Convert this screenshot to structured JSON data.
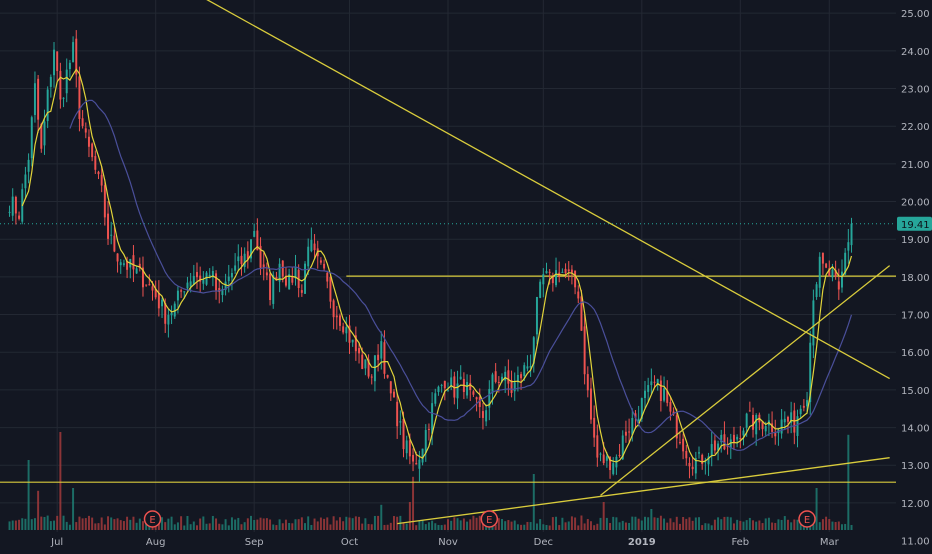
{
  "colors": {
    "background": "#131722",
    "grid": "#232833",
    "up": "#26a69a",
    "down": "#ef5350",
    "up_volume": "#1f7d72",
    "down_volume": "#a2393b",
    "ma_fast": "#e2d43a",
    "ma_slow": "#4a4f9a",
    "trendline": "#d9cc3c",
    "axis_text": "#b2b5be",
    "last_price_bg": "#26a69a",
    "last_price_text": "#0d1118",
    "earnings_marker": "#ef5350"
  },
  "chart_data": {
    "type": "candlestick",
    "price_axis": {
      "ticks": [
        "25.00",
        "24.00",
        "23.00",
        "22.00",
        "21.00",
        "20.00",
        "19.00",
        "18.00",
        "17.00",
        "16.00",
        "15.00",
        "14.00",
        "13.00",
        "12.00",
        "11.00"
      ],
      "ylim": [
        10.75,
        25.35
      ],
      "last_price_label": "19.41",
      "last_price": 19.41
    },
    "time_axis": {
      "months": [
        {
          "label": "Jul",
          "day": 13
        },
        {
          "label": "Aug",
          "day": 44
        },
        {
          "label": "Sep",
          "day": 75
        },
        {
          "label": "Oct",
          "day": 105
        },
        {
          "label": "Nov",
          "day": 136
        },
        {
          "label": "Dec",
          "day": 166
        },
        {
          "label": "2019",
          "day": 197
        },
        {
          "label": "Feb",
          "day": 228
        },
        {
          "label": "Mar",
          "day": 256
        }
      ],
      "day_range": [
        -5,
        277
      ]
    },
    "earnings_markers": [
      {
        "label": "E",
        "day": 43
      },
      {
        "label": "E",
        "day": 149
      },
      {
        "label": "E",
        "day": 249
      }
    ],
    "price_anchors": [
      [
        -2,
        20.0
      ],
      [
        1,
        19.7
      ],
      [
        4,
        21.2
      ],
      [
        6,
        23.0
      ],
      [
        8,
        21.3
      ],
      [
        10,
        22.8
      ],
      [
        12,
        24.1
      ],
      [
        14,
        22.6
      ],
      [
        16,
        23.4
      ],
      [
        18,
        24.0
      ],
      [
        20,
        22.4
      ],
      [
        22,
        21.6
      ],
      [
        24,
        21.1
      ],
      [
        27,
        20.2
      ],
      [
        29,
        19.1
      ],
      [
        32,
        18.6
      ],
      [
        35,
        18.3
      ],
      [
        38,
        18.1
      ],
      [
        41,
        17.9
      ],
      [
        44,
        17.5
      ],
      [
        47,
        17.0
      ],
      [
        50,
        17.2
      ],
      [
        53,
        17.8
      ],
      [
        56,
        18.1
      ],
      [
        59,
        17.9
      ],
      [
        61,
        18.2
      ],
      [
        64,
        17.4
      ],
      [
        67,
        18.0
      ],
      [
        70,
        18.3
      ],
      [
        73,
        18.6
      ],
      [
        75,
        19.3
      ],
      [
        77,
        18.3
      ],
      [
        80,
        17.6
      ],
      [
        83,
        18.4
      ],
      [
        86,
        17.8
      ],
      [
        88,
        18.2
      ],
      [
        90,
        17.6
      ],
      [
        92,
        19.0
      ],
      [
        94,
        18.5
      ],
      [
        97,
        18.0
      ],
      [
        100,
        17.2
      ],
      [
        103,
        16.8
      ],
      [
        106,
        16.2
      ],
      [
        109,
        15.7
      ],
      [
        112,
        15.4
      ],
      [
        115,
        16.3
      ],
      [
        117,
        15.1
      ],
      [
        120,
        14.3
      ],
      [
        122,
        13.6
      ],
      [
        125,
        13.0
      ],
      [
        127,
        13.3
      ],
      [
        130,
        14.2
      ],
      [
        132,
        14.8
      ],
      [
        135,
        15.3
      ],
      [
        138,
        15.0
      ],
      [
        141,
        15.2
      ],
      [
        144,
        14.6
      ],
      [
        147,
        14.3
      ],
      [
        150,
        15.2
      ],
      [
        153,
        15.4
      ],
      [
        156,
        15.0
      ],
      [
        159,
        15.4
      ],
      [
        162,
        15.8
      ],
      [
        164,
        17.2
      ],
      [
        166,
        18.0
      ],
      [
        168,
        17.9
      ],
      [
        171,
        18.2
      ],
      [
        174,
        18.0
      ],
      [
        177,
        17.6
      ],
      [
        179,
        15.6
      ],
      [
        181,
        14.2
      ],
      [
        183,
        13.2
      ],
      [
        186,
        13.1
      ],
      [
        189,
        13.2
      ],
      [
        192,
        13.9
      ],
      [
        195,
        14.3
      ],
      [
        198,
        14.8
      ],
      [
        201,
        15.1
      ],
      [
        204,
        14.9
      ],
      [
        206,
        14.3
      ],
      [
        209,
        13.8
      ],
      [
        212,
        13.2
      ],
      [
        215,
        13.1
      ],
      [
        218,
        13.4
      ],
      [
        221,
        13.6
      ],
      [
        224,
        13.4
      ],
      [
        227,
        13.8
      ],
      [
        230,
        14.2
      ],
      [
        233,
        14.1
      ],
      [
        236,
        14.2
      ],
      [
        239,
        14.0
      ],
      [
        242,
        14.2
      ],
      [
        245,
        14.1
      ],
      [
        247,
        14.6
      ],
      [
        249,
        15.0
      ],
      [
        251,
        17.6
      ],
      [
        253,
        18.3
      ],
      [
        255,
        18.1
      ],
      [
        257,
        18.0
      ],
      [
        259,
        17.5
      ],
      [
        261,
        18.6
      ],
      [
        263,
        19.41
      ]
    ],
    "volume": {
      "baseline_frac_of_max": 0.08,
      "spikes": [
        {
          "day": 4,
          "value": 0.5
        },
        {
          "day": 7,
          "value": 0.28
        },
        {
          "day": 14,
          "value": 0.7
        },
        {
          "day": 18,
          "value": 0.3
        },
        {
          "day": 54,
          "value": 0.1
        },
        {
          "day": 115,
          "value": 0.18
        },
        {
          "day": 124,
          "value": 0.2
        },
        {
          "day": 125,
          "value": 0.38
        },
        {
          "day": 163,
          "value": 0.4
        },
        {
          "day": 185,
          "value": 0.2
        },
        {
          "day": 200,
          "value": 0.15
        },
        {
          "day": 252,
          "value": 0.3
        },
        {
          "day": 262,
          "value": 0.68
        }
      ]
    },
    "moving_averages": [
      {
        "id": "ma_fast",
        "period": 5
      },
      {
        "id": "ma_slow",
        "period": 20
      }
    ],
    "horizontal_lines": [
      18.02,
      12.55
    ],
    "trend_lines": [
      {
        "from": [
          55,
          25.6
        ],
        "to": [
          275,
          15.3
        ]
      },
      {
        "from": [
          120,
          11.45
        ],
        "to": [
          275,
          13.2
        ]
      },
      {
        "from": [
          184,
          12.2
        ],
        "to": [
          275,
          18.3
        ]
      }
    ]
  }
}
